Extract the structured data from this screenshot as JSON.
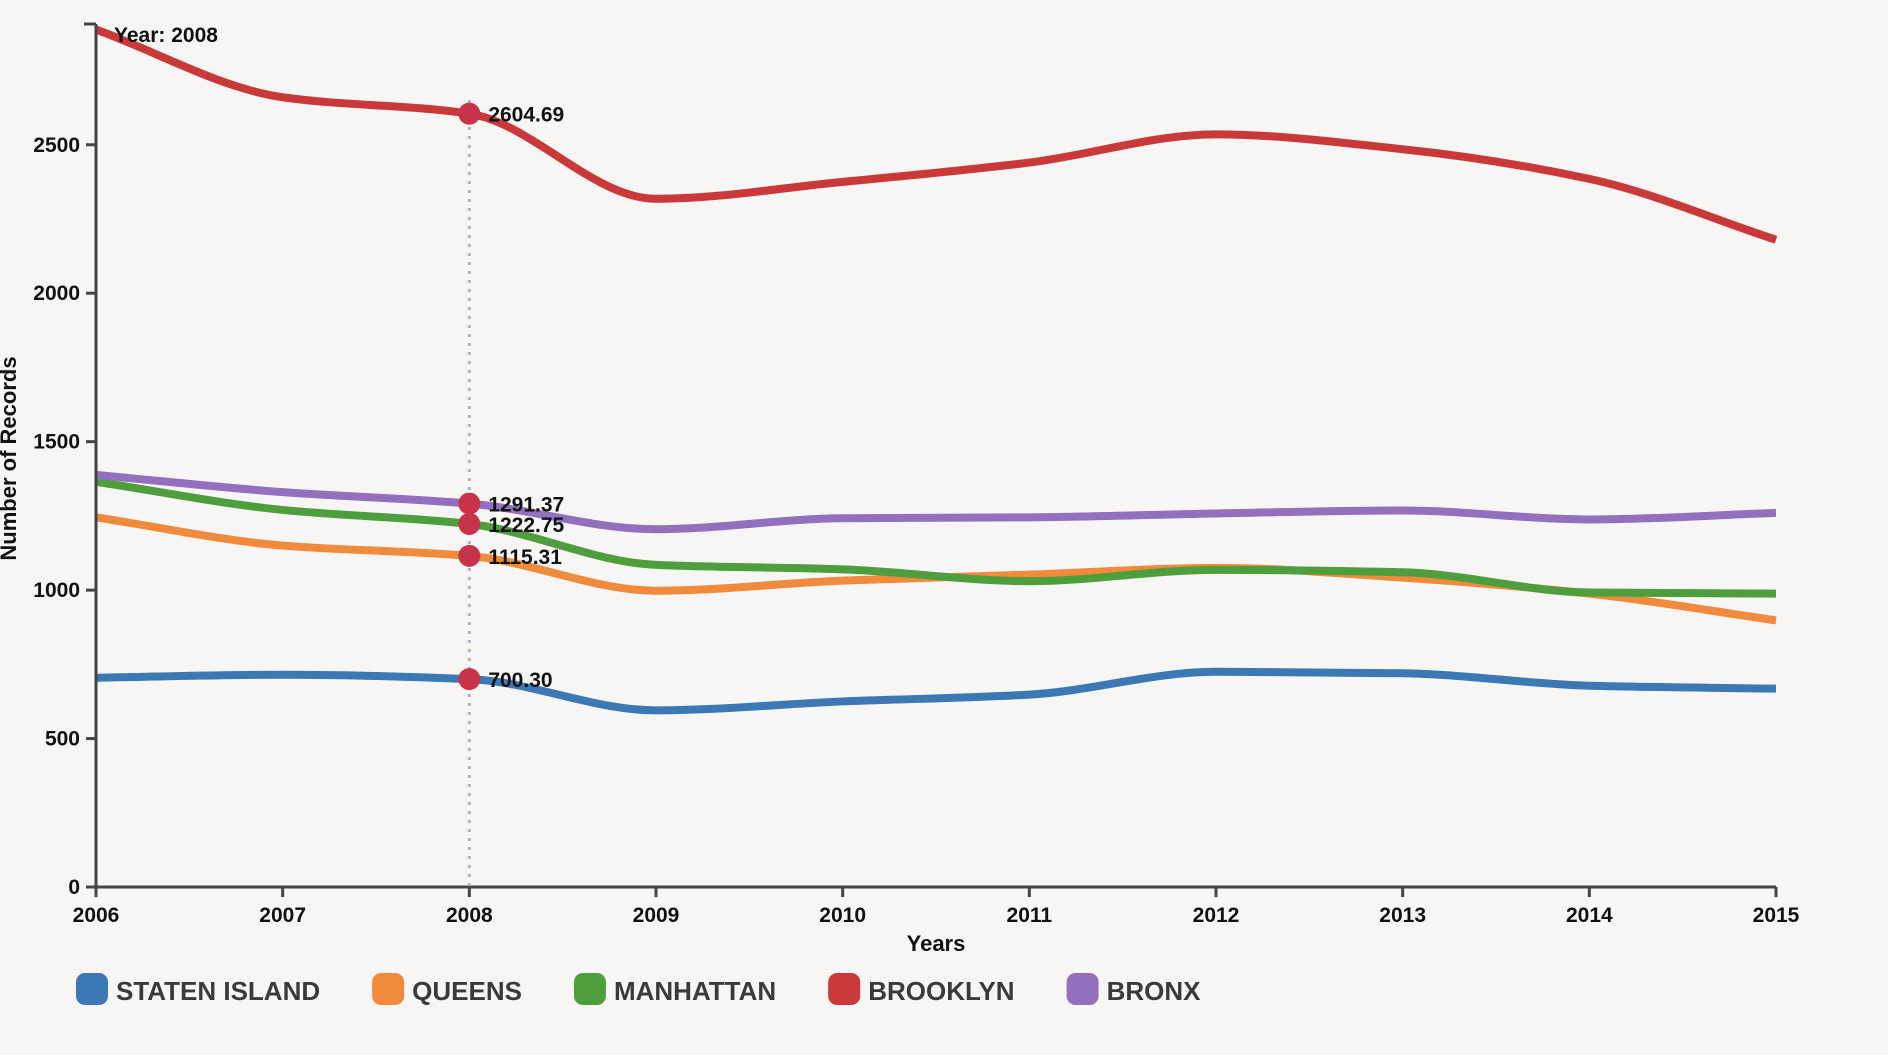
{
  "chart_data": {
    "type": "line",
    "title": "",
    "xlabel": "Years",
    "ylabel": "Number of Records",
    "x": [
      2006,
      2007,
      2008,
      2009,
      2010,
      2011,
      2012,
      2013,
      2014,
      2015
    ],
    "x_tick_labels": [
      "2006",
      "2007",
      "2008",
      "2009",
      "2010",
      "2011",
      "2012",
      "2013",
      "2014",
      "2015"
    ],
    "ylim": [
      0,
      2900
    ],
    "y_ticks": [
      0,
      500,
      1000,
      1500,
      2000,
      2500
    ],
    "y_tick_labels": [
      "0",
      "500",
      "1000",
      "1500",
      "2000",
      "2500"
    ],
    "grid": false,
    "legend_position": "bottom-left",
    "series": [
      {
        "name": "STATEN ISLAND",
        "color": "#3b78b4",
        "values": [
          705,
          715,
          700.3,
          595,
          625,
          648,
          725,
          720,
          678,
          668
        ]
      },
      {
        "name": "QUEENS",
        "color": "#f08a3c",
        "values": [
          1245,
          1150,
          1115.31,
          998,
          1032,
          1052,
          1075,
          1042,
          988,
          898
        ]
      },
      {
        "name": "MANHATTAN",
        "color": "#4f9e3e",
        "values": [
          1365,
          1270,
          1222.75,
          1085,
          1070,
          1030,
          1068,
          1060,
          992,
          988
        ]
      },
      {
        "name": "BROOKLYN",
        "color": "#c9393a",
        "values": [
          2888,
          2660,
          2604.69,
          2318,
          2375,
          2440,
          2535,
          2485,
          2385,
          2180
        ]
      },
      {
        "name": "BRONX",
        "color": "#9270bd",
        "values": [
          1388,
          1330,
          1291.37,
          1205,
          1242,
          1245,
          1258,
          1268,
          1238,
          1260
        ]
      }
    ],
    "hover": {
      "year_label": "Year: 2008",
      "x": 2008,
      "marker_color": "#c9334a",
      "points": [
        {
          "series": "BROOKLYN",
          "value": 2604.69,
          "label": "2604.69"
        },
        {
          "series": "BRONX",
          "value": 1291.37,
          "label": "1291.37"
        },
        {
          "series": "MANHATTAN",
          "value": 1222.75,
          "label": "1222.75"
        },
        {
          "series": "QUEENS",
          "value": 1115.31,
          "label": "1115.31"
        },
        {
          "series": "STATEN ISLAND",
          "value": 700.3,
          "label": "700.30"
        }
      ]
    }
  }
}
